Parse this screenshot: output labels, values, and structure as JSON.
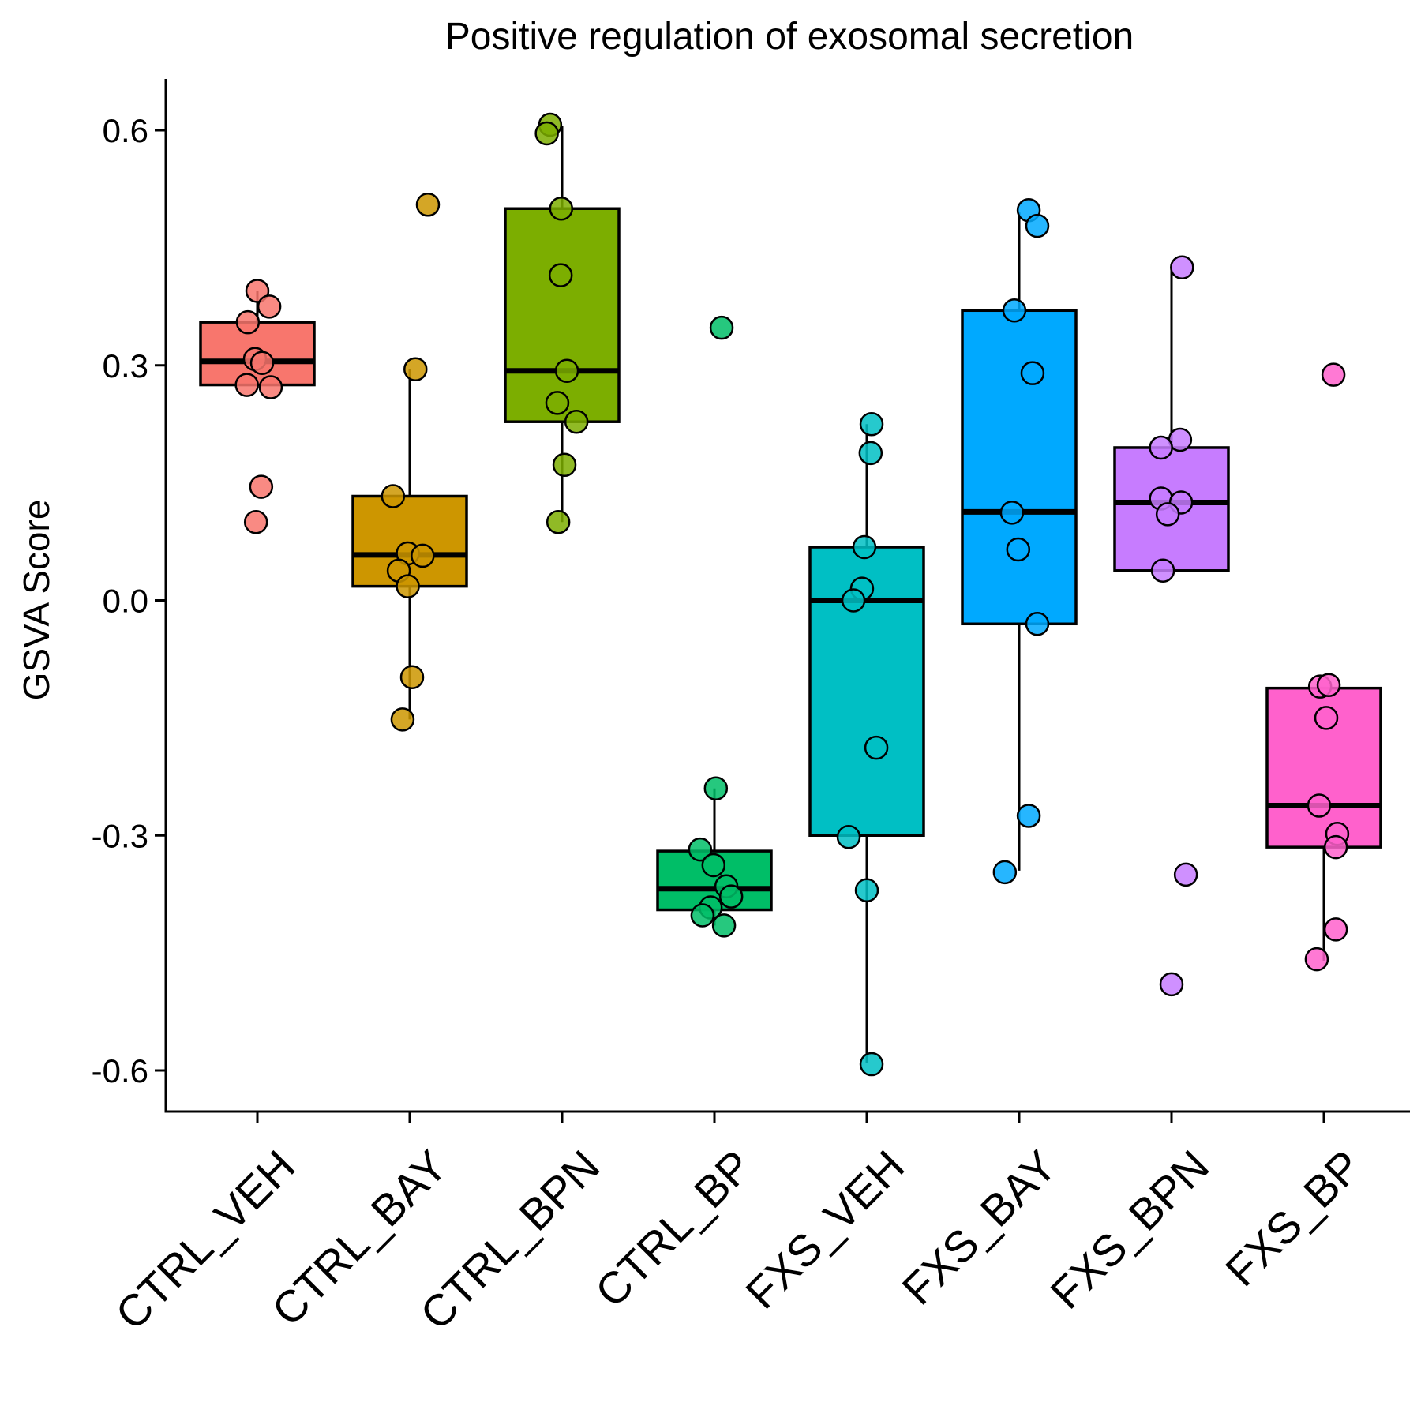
{
  "chart_data": {
    "type": "box",
    "title": "Positive regulation of exosomal secretion",
    "xlabel": "",
    "ylabel": "GSVA Score",
    "ylim": [
      -0.64,
      0.66
    ],
    "yticks": [
      -0.6,
      -0.3,
      0.0,
      0.3,
      0.6
    ],
    "ytick_labels": [
      "-0.6",
      "-0.3",
      "0.0",
      "0.3",
      "0.6"
    ],
    "grid": false,
    "legend": "none",
    "categories": [
      "CTRL_VEH",
      "CTRL_BAY",
      "CTRL_BPN",
      "CTRL_BP",
      "FXS_VEH",
      "FXS_BAY",
      "FXS_BPN",
      "FXS_BP"
    ],
    "colors": [
      "#F8766D",
      "#CD9600",
      "#7CAE00",
      "#00BE67",
      "#00BFC4",
      "#00A9FF",
      "#C77CFF",
      "#FF61CC"
    ],
    "boxes": [
      {
        "whisker_low": 0.275,
        "q1": 0.275,
        "median": 0.305,
        "q3": 0.355,
        "whisker_high": 0.395
      },
      {
        "whisker_low": -0.152,
        "q1": 0.018,
        "median": 0.058,
        "q3": 0.133,
        "whisker_high": 0.295
      },
      {
        "whisker_low": 0.1,
        "q1": 0.228,
        "median": 0.293,
        "q3": 0.5,
        "whisker_high": 0.605
      },
      {
        "whisker_low": -0.415,
        "q1": -0.395,
        "median": -0.368,
        "q3": -0.32,
        "whisker_high": -0.24
      },
      {
        "whisker_low": -0.59,
        "q1": -0.3,
        "median": 0.0,
        "q3": 0.068,
        "whisker_high": 0.225
      },
      {
        "whisker_low": -0.345,
        "q1": -0.03,
        "median": 0.113,
        "q3": 0.37,
        "whisker_high": 0.495
      },
      {
        "whisker_low": null,
        "q1": 0.038,
        "median": 0.125,
        "q3": 0.195,
        "whisker_high": 0.422
      },
      {
        "whisker_low": -0.46,
        "q1": -0.315,
        "median": -0.262,
        "q3": -0.112,
        "whisker_high": null
      }
    ],
    "points": [
      [
        [
          0,
          0.395
        ],
        [
          0.25,
          0.375
        ],
        [
          -0.2,
          0.355
        ],
        [
          -0.05,
          0.308
        ],
        [
          0.1,
          0.303
        ],
        [
          -0.22,
          0.275
        ],
        [
          0.28,
          0.272
        ],
        [
          0.08,
          0.145
        ],
        [
          -0.03,
          0.1
        ]
      ],
      [
        [
          0.38,
          0.505
        ],
        [
          0.12,
          0.295
        ],
        [
          -0.35,
          0.133
        ],
        [
          -0.04,
          0.06
        ],
        [
          0.27,
          0.057
        ],
        [
          -0.23,
          0.038
        ],
        [
          -0.04,
          0.018
        ],
        [
          0.05,
          -0.098
        ],
        [
          -0.15,
          -0.152
        ]
      ],
      [
        [
          -0.25,
          0.607
        ],
        [
          -0.32,
          0.596
        ],
        [
          -0.02,
          0.5
        ],
        [
          -0.03,
          0.415
        ],
        [
          0.1,
          0.293
        ],
        [
          -0.1,
          0.252
        ],
        [
          0.3,
          0.228
        ],
        [
          0.05,
          0.173
        ],
        [
          -0.08,
          0.1
        ]
      ],
      [
        [
          0.15,
          0.348
        ],
        [
          0.03,
          -0.24
        ],
        [
          -0.3,
          -0.318
        ],
        [
          -0.02,
          -0.338
        ],
        [
          0.25,
          -0.365
        ],
        [
          0.35,
          -0.378
        ],
        [
          -0.08,
          -0.392
        ],
        [
          -0.25,
          -0.402
        ],
        [
          0.2,
          -0.415
        ]
      ],
      [
        [
          0.1,
          0.225
        ],
        [
          0.08,
          0.188
        ],
        [
          -0.05,
          0.068
        ],
        [
          -0.1,
          0.015
        ],
        [
          -0.28,
          0.0
        ],
        [
          0.2,
          -0.188
        ],
        [
          -0.38,
          -0.302
        ],
        [
          0.0,
          -0.37
        ],
        [
          0.1,
          -0.592
        ]
      ],
      [
        [
          0.2,
          0.498
        ],
        [
          0.38,
          0.478
        ],
        [
          -0.1,
          0.37
        ],
        [
          0.28,
          0.29
        ],
        [
          -0.15,
          0.112
        ],
        [
          -0.02,
          0.065
        ],
        [
          0.38,
          -0.03
        ],
        [
          0.2,
          -0.275
        ],
        [
          -0.3,
          -0.347
        ]
      ],
      [
        [
          0.22,
          0.425
        ],
        [
          0.18,
          0.205
        ],
        [
          -0.22,
          0.195
        ],
        [
          -0.22,
          0.13
        ],
        [
          0.2,
          0.125
        ],
        [
          -0.08,
          0.11
        ],
        [
          -0.18,
          0.038
        ],
        [
          0.3,
          -0.35
        ],
        [
          0.0,
          -0.49
        ]
      ],
      [
        [
          0.2,
          0.288
        ],
        [
          -0.08,
          -0.11
        ],
        [
          0.1,
          -0.108
        ],
        [
          0.05,
          -0.15
        ],
        [
          -0.1,
          -0.262
        ],
        [
          0.28,
          -0.298
        ],
        [
          0.25,
          -0.315
        ],
        [
          0.25,
          -0.42
        ],
        [
          -0.15,
          -0.458
        ]
      ]
    ]
  }
}
